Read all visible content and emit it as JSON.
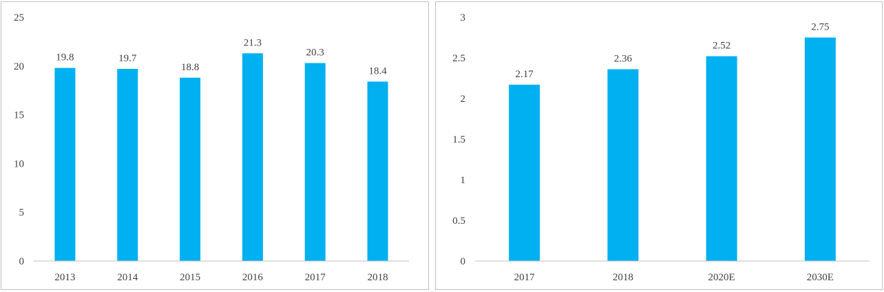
{
  "bar_color": "#00b0f0",
  "axis_color": "#bfbfbf",
  "text_color": "#404040",
  "chart_data": [
    {
      "type": "bar",
      "categories": [
        "2013",
        "2014",
        "2015",
        "2016",
        "2017",
        "2018"
      ],
      "values": [
        19.8,
        19.7,
        18.8,
        21.3,
        20.3,
        18.4
      ],
      "data_labels": [
        "19.8",
        "19.7",
        "18.8",
        "21.3",
        "20.3",
        "18.4"
      ],
      "y_ticks": [
        "0",
        "5",
        "10",
        "15",
        "20",
        "25"
      ],
      "ylim": [
        0,
        25
      ],
      "grid": false,
      "legend": "none",
      "title": "",
      "xlabel": "",
      "ylabel": ""
    },
    {
      "type": "bar",
      "categories": [
        "2017",
        "2018",
        "2020E",
        "2030E"
      ],
      "values": [
        2.17,
        2.36,
        2.52,
        2.75
      ],
      "data_labels": [
        "2.17",
        "2.36",
        "2.52",
        "2.75"
      ],
      "y_ticks": [
        "0",
        "0.5",
        "1",
        "1.5",
        "2",
        "2.5",
        "3"
      ],
      "ylim": [
        0,
        3
      ],
      "grid": false,
      "legend": "none",
      "title": "",
      "xlabel": "",
      "ylabel": ""
    }
  ]
}
